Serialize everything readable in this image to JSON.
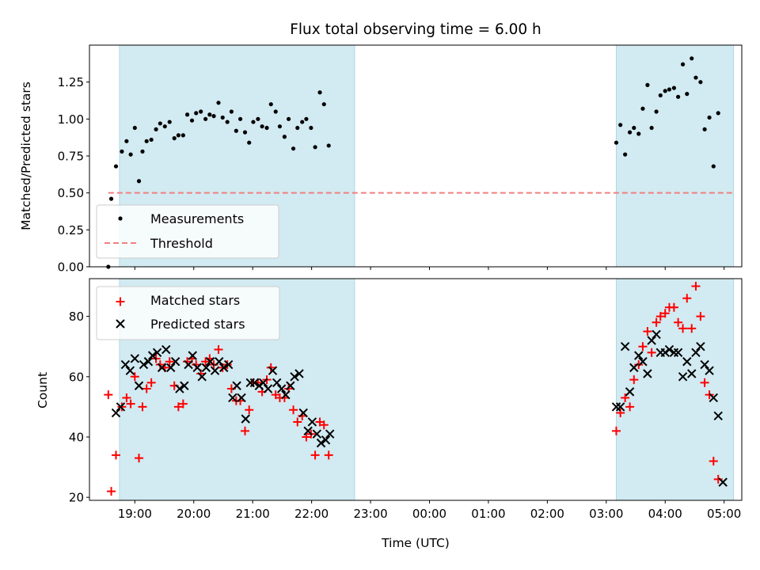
{
  "chart_data": {
    "title": "Flux total observing time = 6.00 h",
    "xlabel": "Time (UTC)",
    "x_unit": "hours after 18:00 UTC (x-ticks shown as clock times)",
    "xlim": [
      0.23,
      11.3
    ],
    "x_ticks": [
      {
        "t": 1,
        "label": "19:00"
      },
      {
        "t": 2,
        "label": "20:00"
      },
      {
        "t": 3,
        "label": "21:00"
      },
      {
        "t": 4,
        "label": "22:00"
      },
      {
        "t": 5,
        "label": "23:00"
      },
      {
        "t": 6,
        "label": "00:00"
      },
      {
        "t": 7,
        "label": "01:00"
      },
      {
        "t": 8,
        "label": "02:00"
      },
      {
        "t": 9,
        "label": "03:00"
      },
      {
        "t": 10,
        "label": "04:00"
      },
      {
        "t": 11,
        "label": "05:00"
      }
    ],
    "spans": [
      [
        0.74,
        4.73
      ],
      [
        9.17,
        11.16
      ]
    ],
    "colors": {
      "span": "#add8e6",
      "measurement": "#000000",
      "threshold": "#f08080",
      "matched": "#ff0000",
      "predicted": "#000000"
    },
    "top": {
      "type": "scatter",
      "ylabel": "Matched/Predicted stars",
      "ylim": [
        0,
        1.5
      ],
      "y_ticks": [
        0,
        0.25,
        0.5,
        0.75,
        1.0,
        1.25
      ],
      "y_tick_labels": [
        "0.00",
        "0.25",
        "0.50",
        "0.75",
        "1.00",
        "1.25"
      ],
      "threshold": {
        "y": 0.5,
        "x_range": [
          0.55,
          11.16
        ]
      },
      "legend": {
        "location": "lower-left",
        "entries": [
          "Measurements",
          "Threshold"
        ]
      },
      "series": [
        {
          "name": "Measurements",
          "points": [
            [
              0.55,
              0.0
            ],
            [
              0.6,
              0.46
            ],
            [
              0.68,
              0.68
            ],
            [
              0.78,
              0.78
            ],
            [
              0.86,
              0.85
            ],
            [
              0.93,
              0.76
            ],
            [
              1.0,
              0.94
            ],
            [
              1.07,
              0.58
            ],
            [
              1.13,
              0.78
            ],
            [
              1.2,
              0.85
            ],
            [
              1.28,
              0.86
            ],
            [
              1.36,
              0.93
            ],
            [
              1.43,
              0.97
            ],
            [
              1.51,
              0.95
            ],
            [
              1.59,
              0.98
            ],
            [
              1.67,
              0.87
            ],
            [
              1.74,
              0.89
            ],
            [
              1.82,
              0.89
            ],
            [
              1.89,
              1.03
            ],
            [
              1.97,
              0.99
            ],
            [
              2.04,
              1.04
            ],
            [
              2.12,
              1.05
            ],
            [
              2.2,
              1.0
            ],
            [
              2.27,
              1.03
            ],
            [
              2.34,
              1.02
            ],
            [
              2.42,
              1.11
            ],
            [
              2.49,
              1.01
            ],
            [
              2.57,
              0.98
            ],
            [
              2.64,
              1.05
            ],
            [
              2.72,
              0.92
            ],
            [
              2.79,
              1.0
            ],
            [
              2.87,
              0.91
            ],
            [
              2.94,
              0.84
            ],
            [
              3.01,
              0.98
            ],
            [
              3.09,
              1.0
            ],
            [
              3.16,
              0.95
            ],
            [
              3.24,
              0.94
            ],
            [
              3.31,
              1.1
            ],
            [
              3.39,
              1.05
            ],
            [
              3.46,
              0.95
            ],
            [
              3.54,
              0.88
            ],
            [
              3.61,
              1.0
            ],
            [
              3.69,
              0.8
            ],
            [
              3.76,
              0.94
            ],
            [
              3.84,
              0.98
            ],
            [
              3.91,
              1.0
            ],
            [
              3.99,
              0.94
            ],
            [
              4.06,
              0.81
            ],
            [
              4.14,
              1.18
            ],
            [
              4.21,
              1.1
            ],
            [
              4.29,
              0.82
            ],
            [
              9.17,
              0.84
            ],
            [
              9.24,
              0.96
            ],
            [
              9.32,
              0.76
            ],
            [
              9.4,
              0.91
            ],
            [
              9.47,
              0.94
            ],
            [
              9.55,
              0.9
            ],
            [
              9.62,
              1.07
            ],
            [
              9.7,
              1.23
            ],
            [
              9.77,
              0.94
            ],
            [
              9.85,
              1.05
            ],
            [
              9.92,
              1.16
            ],
            [
              10.0,
              1.19
            ],
            [
              10.07,
              1.2
            ],
            [
              10.15,
              1.21
            ],
            [
              10.22,
              1.15
            ],
            [
              10.3,
              1.37
            ],
            [
              10.37,
              1.17
            ],
            [
              10.45,
              1.41
            ],
            [
              10.52,
              1.28
            ],
            [
              10.6,
              1.25
            ],
            [
              10.67,
              0.93
            ],
            [
              10.75,
              1.01
            ],
            [
              10.82,
              0.68
            ],
            [
              10.9,
              1.04
            ]
          ]
        }
      ]
    },
    "bottom": {
      "type": "scatter",
      "ylabel": "Count",
      "ylim": [
        19,
        92.5
      ],
      "y_ticks": [
        20,
        40,
        60,
        80
      ],
      "y_tick_labels": [
        "20",
        "40",
        "60",
        "80"
      ],
      "legend": {
        "location": "upper-left",
        "entries": [
          "Matched stars",
          "Predicted stars"
        ]
      },
      "series": [
        {
          "name": "Matched stars",
          "marker": "plus",
          "points": [
            [
              0.55,
              54
            ],
            [
              0.6,
              22
            ],
            [
              0.68,
              34
            ],
            [
              0.78,
              50
            ],
            [
              0.86,
              53
            ],
            [
              0.93,
              51
            ],
            [
              1.0,
              60
            ],
            [
              1.07,
              33
            ],
            [
              1.13,
              50
            ],
            [
              1.2,
              56
            ],
            [
              1.28,
              58
            ],
            [
              1.36,
              66
            ],
            [
              1.43,
              64
            ],
            [
              1.51,
              63
            ],
            [
              1.59,
              65
            ],
            [
              1.67,
              57
            ],
            [
              1.74,
              50
            ],
            [
              1.82,
              51
            ],
            [
              1.89,
              65
            ],
            [
              1.97,
              66
            ],
            [
              2.04,
              64
            ],
            [
              2.12,
              61
            ],
            [
              2.2,
              65
            ],
            [
              2.27,
              66
            ],
            [
              2.34,
              64
            ],
            [
              2.42,
              69
            ],
            [
              2.49,
              63
            ],
            [
              2.57,
              64
            ],
            [
              2.64,
              56
            ],
            [
              2.72,
              52
            ],
            [
              2.79,
              52
            ],
            [
              2.87,
              42
            ],
            [
              2.94,
              49
            ],
            [
              3.01,
              58
            ],
            [
              3.09,
              58
            ],
            [
              3.16,
              55
            ],
            [
              3.24,
              59
            ],
            [
              3.31,
              63
            ],
            [
              3.39,
              54
            ],
            [
              3.46,
              53
            ],
            [
              3.54,
              53
            ],
            [
              3.61,
              56
            ],
            [
              3.69,
              49
            ],
            [
              3.76,
              45
            ],
            [
              3.84,
              47
            ],
            [
              3.91,
              40
            ],
            [
              3.99,
              41
            ],
            [
              4.06,
              34
            ],
            [
              4.14,
              45
            ],
            [
              4.21,
              44
            ],
            [
              4.29,
              34
            ],
            [
              9.17,
              42
            ],
            [
              9.24,
              48
            ],
            [
              9.32,
              53
            ],
            [
              9.4,
              50
            ],
            [
              9.47,
              59
            ],
            [
              9.55,
              64
            ],
            [
              9.62,
              70
            ],
            [
              9.7,
              75
            ],
            [
              9.77,
              68
            ],
            [
              9.85,
              78
            ],
            [
              9.92,
              80
            ],
            [
              10.0,
              81
            ],
            [
              10.07,
              83
            ],
            [
              10.15,
              83
            ],
            [
              10.22,
              78
            ],
            [
              10.3,
              76
            ],
            [
              10.37,
              86
            ],
            [
              10.45,
              76
            ],
            [
              10.52,
              90
            ],
            [
              10.6,
              80
            ],
            [
              10.67,
              58
            ],
            [
              10.75,
              54
            ],
            [
              10.82,
              32
            ],
            [
              10.9,
              26
            ]
          ]
        },
        {
          "name": "Predicted stars",
          "marker": "x",
          "points": [
            [
              0.68,
              48
            ],
            [
              0.76,
              50
            ],
            [
              0.84,
              64
            ],
            [
              0.92,
              62
            ],
            [
              1.0,
              66
            ],
            [
              1.07,
              57
            ],
            [
              1.15,
              64
            ],
            [
              1.23,
              65
            ],
            [
              1.3,
              67
            ],
            [
              1.38,
              68
            ],
            [
              1.46,
              63
            ],
            [
              1.53,
              69
            ],
            [
              1.61,
              63
            ],
            [
              1.69,
              65
            ],
            [
              1.76,
              56
            ],
            [
              1.84,
              57
            ],
            [
              1.91,
              64
            ],
            [
              1.98,
              67
            ],
            [
              2.06,
              63
            ],
            [
              2.14,
              60
            ],
            [
              2.21,
              63
            ],
            [
              2.28,
              65
            ],
            [
              2.36,
              62
            ],
            [
              2.43,
              65
            ],
            [
              2.51,
              63
            ],
            [
              2.59,
              64
            ],
            [
              2.66,
              53
            ],
            [
              2.73,
              57
            ],
            [
              2.81,
              53
            ],
            [
              2.88,
              46
            ],
            [
              2.96,
              58
            ],
            [
              3.03,
              58
            ],
            [
              3.11,
              57
            ],
            [
              3.18,
              58
            ],
            [
              3.26,
              56
            ],
            [
              3.34,
              62
            ],
            [
              3.41,
              58
            ],
            [
              3.49,
              56
            ],
            [
              3.56,
              54
            ],
            [
              3.64,
              57
            ],
            [
              3.71,
              60
            ],
            [
              3.79,
              61
            ],
            [
              3.86,
              48
            ],
            [
              3.94,
              42
            ],
            [
              4.01,
              45
            ],
            [
              4.09,
              41
            ],
            [
              4.16,
              38
            ],
            [
              4.24,
              39
            ],
            [
              4.31,
              41
            ],
            [
              9.17,
              50
            ],
            [
              9.24,
              50
            ],
            [
              9.32,
              70
            ],
            [
              9.4,
              55
            ],
            [
              9.47,
              63
            ],
            [
              9.55,
              67
            ],
            [
              9.62,
              65
            ],
            [
              9.7,
              61
            ],
            [
              9.77,
              72
            ],
            [
              9.85,
              74
            ],
            [
              9.92,
              68
            ],
            [
              10.0,
              68
            ],
            [
              10.07,
              69
            ],
            [
              10.15,
              68
            ],
            [
              10.22,
              68
            ],
            [
              10.3,
              60
            ],
            [
              10.37,
              65
            ],
            [
              10.45,
              61
            ],
            [
              10.52,
              68
            ],
            [
              10.6,
              70
            ],
            [
              10.67,
              64
            ],
            [
              10.75,
              62
            ],
            [
              10.82,
              53
            ],
            [
              10.9,
              47
            ],
            [
              10.98,
              25
            ]
          ]
        }
      ]
    }
  }
}
